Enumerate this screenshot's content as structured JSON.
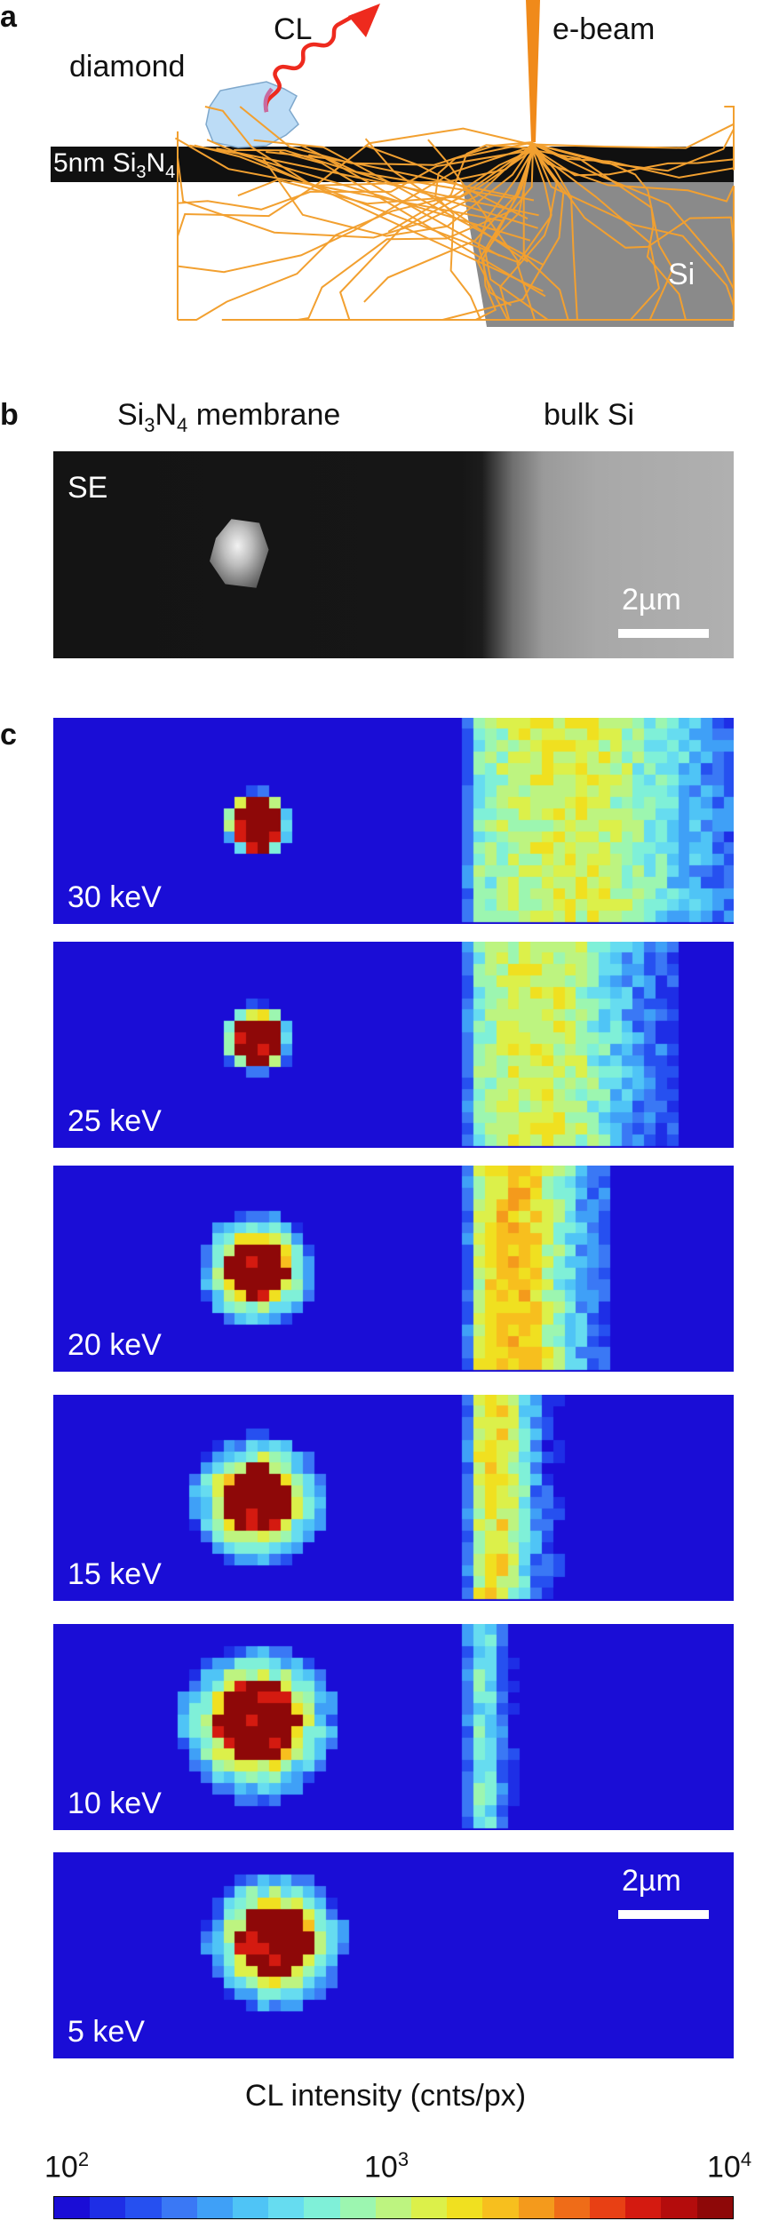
{
  "panel_a": {
    "letter": "a",
    "label_diamond": "diamond",
    "label_cl": "CL",
    "label_ebeam": "e-beam",
    "label_membrane_prefix": "5nm Si",
    "label_membrane_sub3": "3",
    "label_membrane_N": "N",
    "label_membrane_sub4": "4",
    "label_si": "Si"
  },
  "panel_b": {
    "letter": "b",
    "title_left_prefix": "Si",
    "title_left_sub3": "3",
    "title_left_N": "N",
    "title_left_sub4": "4",
    "title_left_suffix": " membrane",
    "title_right": "bulk Si",
    "mode_label": "SE",
    "scalebar_label": "2µm"
  },
  "panel_c": {
    "letter": "c",
    "maps": [
      {
        "energy_label": "30 keV"
      },
      {
        "energy_label": "25 keV"
      },
      {
        "energy_label": "20 keV"
      },
      {
        "energy_label": "15 keV"
      },
      {
        "energy_label": "10 keV"
      },
      {
        "energy_label": "5 keV"
      }
    ],
    "scalebar_label": "2µm"
  },
  "colorbar": {
    "title": "CL intensity (cnts/px)",
    "tick_min_base": "10",
    "tick_min_exp": "2",
    "tick_mid_base": "10",
    "tick_mid_exp": "3",
    "tick_max_base": "10",
    "tick_max_exp": "4",
    "colors": [
      "#1a0dd6",
      "#1e2ee6",
      "#2650f0",
      "#3a78f5",
      "#3fa0f7",
      "#4fc4f6",
      "#66dcf0",
      "#7ff0d8",
      "#9cf6b0",
      "#bdf480",
      "#dcf04a",
      "#f0e020",
      "#f7bf1e",
      "#f49a1c",
      "#ef6c18",
      "#e84014",
      "#d41a10",
      "#b40c0c",
      "#8e0808"
    ]
  },
  "colors": {
    "beam": "#f08a1a",
    "trajectory": "#f2a030",
    "membrane": "#101010",
    "silicon": "#8a8a8a",
    "diamond_fill": "#bcdcf6",
    "cl_arrow": "#ee2a1e",
    "map_background": "#1a0dd6",
    "hot": "#8e0a0a"
  }
}
